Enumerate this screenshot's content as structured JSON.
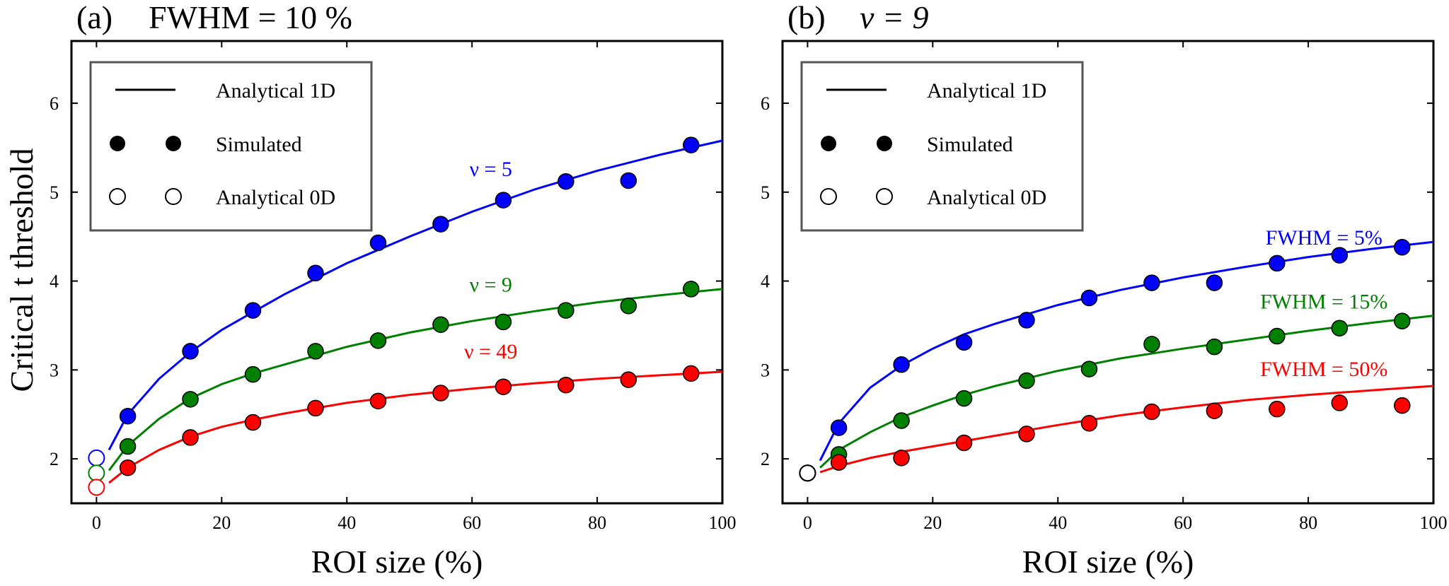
{
  "figure": {
    "ylabel": "Critical t  threshold",
    "legend_entries": [
      {
        "label": "Analytical 1D",
        "marker": "line"
      },
      {
        "label": "Simulated",
        "marker": "filled-circle"
      },
      {
        "label": "Analytical 0D",
        "marker": "open-circle"
      }
    ]
  },
  "chart_data": [
    {
      "type": "line",
      "panel_letter": "(a)",
      "panel_label": "FWHM = 10 %",
      "xlabel": "ROI size  (%)",
      "ylabel": "Critical t  threshold",
      "xlim": [
        -4,
        100
      ],
      "ylim": [
        1.5,
        6.7
      ],
      "xticks": [
        0,
        20,
        40,
        60,
        80,
        100
      ],
      "yticks": [
        2,
        3,
        4,
        5,
        6
      ],
      "legend": "top-left",
      "grid": false,
      "series": [
        {
          "label": "ν = 5",
          "color": "#0000ff",
          "label_at": [
            63,
            5.18
          ],
          "analytical_1d": {
            "x": [
              2,
              5,
              10,
              15,
              20,
              25,
              30,
              40,
              50,
              60,
              70,
              80,
              90,
              100
            ],
            "y": [
              2.1,
              2.5,
              2.9,
              3.2,
              3.45,
              3.65,
              3.85,
              4.2,
              4.5,
              4.78,
              5.03,
              5.24,
              5.42,
              5.58
            ]
          },
          "simulated": {
            "x": [
              5,
              15,
              25,
              35,
              45,
              55,
              65,
              75,
              85,
              95
            ],
            "y": [
              2.48,
              3.21,
              3.67,
              4.09,
              4.43,
              4.64,
              4.91,
              5.12,
              5.13,
              5.53
            ]
          },
          "analytical_0d": {
            "x": [
              0
            ],
            "y": [
              2.01
            ]
          }
        },
        {
          "label": "ν = 9",
          "color": "#008000",
          "label_at": [
            63,
            3.88
          ],
          "analytical_1d": {
            "x": [
              2,
              5,
              10,
              15,
              20,
              25,
              30,
              40,
              50,
              60,
              70,
              80,
              90,
              100
            ],
            "y": [
              1.87,
              2.15,
              2.45,
              2.68,
              2.84,
              2.96,
              3.06,
              3.26,
              3.42,
              3.55,
              3.66,
              3.76,
              3.84,
              3.91
            ]
          },
          "simulated": {
            "x": [
              5,
              15,
              25,
              35,
              45,
              55,
              65,
              75,
              85,
              95
            ],
            "y": [
              2.14,
              2.67,
              2.95,
              3.21,
              3.33,
              3.51,
              3.54,
              3.67,
              3.72,
              3.91
            ]
          },
          "analytical_0d": {
            "x": [
              0
            ],
            "y": [
              1.84
            ]
          }
        },
        {
          "label": "ν = 49",
          "color": "#ff0000",
          "label_at": [
            63,
            3.13
          ],
          "analytical_1d": {
            "x": [
              2,
              5,
              10,
              15,
              20,
              25,
              30,
              40,
              50,
              60,
              70,
              80,
              90,
              100
            ],
            "y": [
              1.73,
              1.9,
              2.1,
              2.25,
              2.36,
              2.44,
              2.51,
              2.63,
              2.72,
              2.79,
              2.85,
              2.9,
              2.94,
              2.98
            ]
          },
          "simulated": {
            "x": [
              5,
              15,
              25,
              35,
              45,
              55,
              65,
              75,
              85,
              95
            ],
            "y": [
              1.9,
              2.24,
              2.41,
              2.57,
              2.65,
              2.74,
              2.81,
              2.83,
              2.89,
              2.96
            ]
          },
          "analytical_0d": {
            "x": [
              0
            ],
            "y": [
              1.68
            ]
          }
        }
      ]
    },
    {
      "type": "line",
      "panel_letter": "(b)",
      "panel_label": "ν = 9",
      "xlabel": "ROI size  (%)",
      "ylabel": "",
      "xlim": [
        -4,
        100
      ],
      "ylim": [
        1.5,
        6.7
      ],
      "xticks": [
        0,
        20,
        40,
        60,
        80,
        100
      ],
      "yticks": [
        2,
        3,
        4,
        5,
        6
      ],
      "legend": "top-left",
      "grid": false,
      "series": [
        {
          "label": "FWHM = 5%",
          "color": "#0000ff",
          "label_at": [
            82.5,
            4.41
          ],
          "analytical_1d": {
            "x": [
              2,
              5,
              10,
              15,
              20,
              25,
              30,
              40,
              50,
              60,
              70,
              80,
              90,
              100
            ],
            "y": [
              1.98,
              2.4,
              2.8,
              3.05,
              3.24,
              3.4,
              3.52,
              3.73,
              3.9,
              4.04,
              4.16,
              4.27,
              4.36,
              4.44
            ]
          },
          "simulated": {
            "x": [
              5,
              15,
              25,
              35,
              45,
              55,
              65,
              75,
              85,
              95
            ],
            "y": [
              2.35,
              3.06,
              3.31,
              3.56,
              3.81,
              3.98,
              3.98,
              4.2,
              4.29,
              4.38
            ]
          },
          "analytical_0d": {
            "x": [
              0
            ],
            "y": [
              1.84
            ]
          }
        },
        {
          "label": "FWHM = 15%",
          "color": "#008000",
          "label_at": [
            82.5,
            3.69
          ],
          "analytical_1d": {
            "x": [
              2,
              5,
              10,
              15,
              20,
              25,
              30,
              40,
              50,
              60,
              70,
              80,
              90,
              100
            ],
            "y": [
              1.9,
              2.1,
              2.3,
              2.47,
              2.6,
              2.72,
              2.82,
              2.99,
              3.13,
              3.24,
              3.34,
              3.44,
              3.53,
              3.61
            ]
          },
          "simulated": {
            "x": [
              5,
              15,
              25,
              35,
              45,
              55,
              65,
              75,
              85,
              95
            ],
            "y": [
              2.05,
              2.43,
              2.68,
              2.88,
              3.01,
              3.29,
              3.26,
              3.38,
              3.47,
              3.55
            ]
          },
          "analytical_0d": {
            "x": [
              0
            ],
            "y": [
              1.84
            ]
          }
        },
        {
          "label": "FWHM = 50%",
          "color": "#ff0000",
          "label_at": [
            82.5,
            2.93
          ],
          "analytical_1d": {
            "x": [
              2,
              5,
              10,
              15,
              20,
              25,
              30,
              40,
              50,
              60,
              70,
              80,
              90,
              100
            ],
            "y": [
              1.85,
              1.92,
              2.01,
              2.08,
              2.14,
              2.2,
              2.26,
              2.38,
              2.49,
              2.58,
              2.66,
              2.72,
              2.77,
              2.82
            ]
          },
          "simulated": {
            "x": [
              5,
              15,
              25,
              35,
              45,
              55,
              65,
              75,
              85,
              95
            ],
            "y": [
              1.96,
              2.01,
              2.18,
              2.28,
              2.4,
              2.53,
              2.54,
              2.56,
              2.63,
              2.6
            ]
          },
          "analytical_0d": {
            "x": [
              0
            ],
            "y": [
              1.84
            ]
          }
        }
      ]
    }
  ]
}
